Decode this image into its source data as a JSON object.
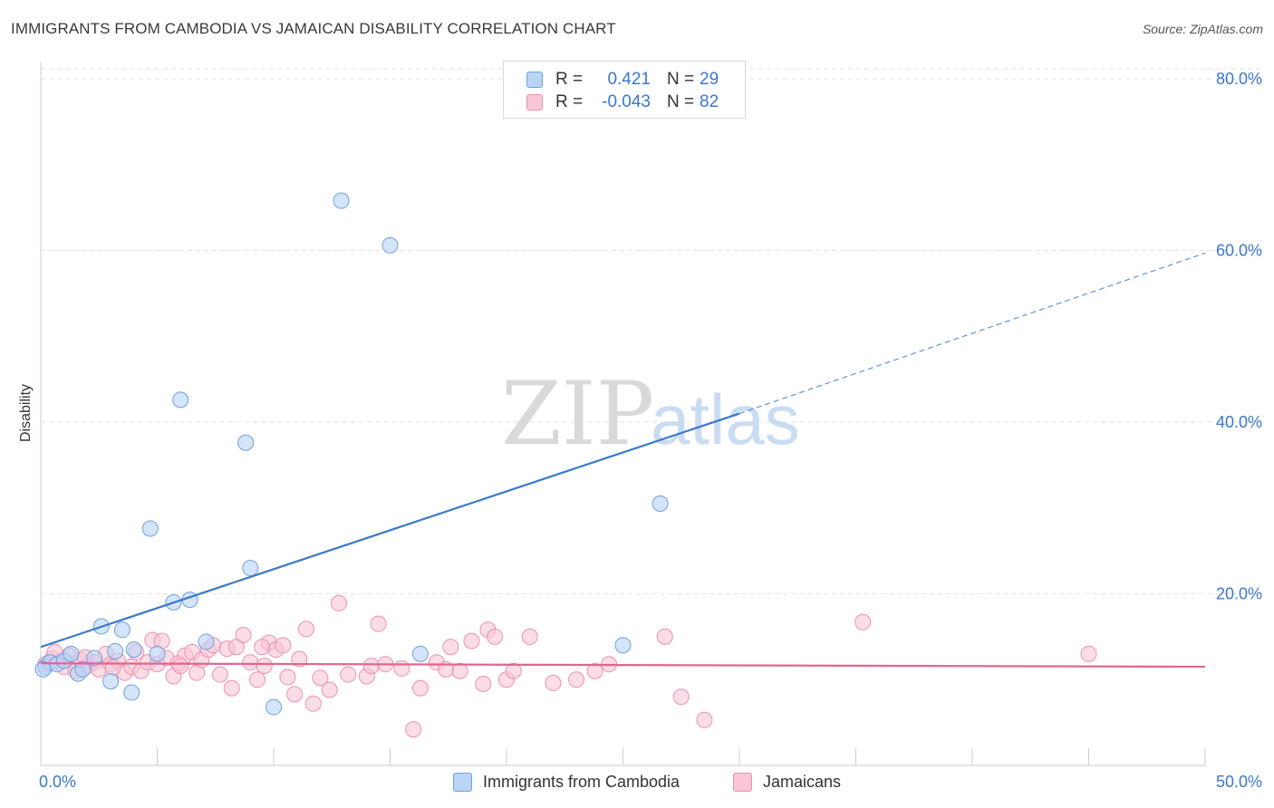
{
  "title": "IMMIGRANTS FROM CAMBODIA VS JAMAICAN DISABILITY CORRELATION CHART",
  "source": "Source: ZipAtlas.com",
  "watermark": {
    "zip": "ZIP",
    "atlas": "atlas"
  },
  "colors": {
    "blue": "#3b78cc",
    "blue_fill": "#b9d4f5",
    "blue_stroke": "#6fa0e0",
    "pink": "#e0668f",
    "pink_fill": "#f8c6d6",
    "pink_stroke": "#ec91b0",
    "grid": "#e3e3e3"
  },
  "stats": [
    {
      "r_label": "R =",
      "r_value": "0.421",
      "n_label": "N =",
      "n_value": "29"
    },
    {
      "r_label": "R =",
      "r_value": "-0.043",
      "n_label": "N =",
      "n_value": "82"
    }
  ],
  "legend": [
    {
      "label": "Immigrants from Cambodia"
    },
    {
      "label": "Jamaicans"
    }
  ],
  "chart_data": {
    "type": "scatter",
    "title": "IMMIGRANTS FROM CAMBODIA VS JAMAICAN DISABILITY CORRELATION CHART",
    "xlabel": "",
    "ylabel": "Disability",
    "xlim": [
      0,
      50
    ],
    "ylim": [
      0,
      80
    ],
    "x_tick_labels": [
      "0.0%",
      "50.0%"
    ],
    "y_ticks": [
      20,
      40,
      60,
      80
    ],
    "y_tick_labels": [
      "20.0%",
      "40.0%",
      "60.0%",
      "80.0%"
    ],
    "grid": true,
    "legend_position": "bottom",
    "series": [
      {
        "name": "Immigrants from Cambodia",
        "color": "#3b78cc",
        "points": [
          [
            0.2,
            11.5
          ],
          [
            0.4,
            12.0
          ],
          [
            0.7,
            11.8
          ],
          [
            1.0,
            12.2
          ],
          [
            1.3,
            13.0
          ],
          [
            1.6,
            10.7
          ],
          [
            1.8,
            11.2
          ],
          [
            2.3,
            12.5
          ],
          [
            2.6,
            16.2
          ],
          [
            3.0,
            9.8
          ],
          [
            3.2,
            13.3
          ],
          [
            3.5,
            15.8
          ],
          [
            3.9,
            8.5
          ],
          [
            4.0,
            13.5
          ],
          [
            4.7,
            27.6
          ],
          [
            5.0,
            13.0
          ],
          [
            5.7,
            19.0
          ],
          [
            6.0,
            42.6
          ],
          [
            6.4,
            19.3
          ],
          [
            7.1,
            14.4
          ],
          [
            8.8,
            37.6
          ],
          [
            9.0,
            23.0
          ],
          [
            10.0,
            6.8
          ],
          [
            12.9,
            65.8
          ],
          [
            15.0,
            60.6
          ],
          [
            16.3,
            13.0
          ],
          [
            25.0,
            14.0
          ],
          [
            26.6,
            30.5
          ],
          [
            0.1,
            11.2
          ]
        ],
        "trend": {
          "x": [
            0,
            30
          ],
          "y": [
            13.8,
            41.0
          ],
          "dashed_to": [
            50,
            59.7
          ]
        }
      },
      {
        "name": "Jamaicans",
        "color": "#e0668f",
        "points": [
          [
            0.2,
            11.8
          ],
          [
            0.5,
            12.5
          ],
          [
            0.8,
            12.0
          ],
          [
            1.0,
            11.5
          ],
          [
            1.2,
            12.8
          ],
          [
            1.5,
            11.0
          ],
          [
            1.7,
            12.3
          ],
          [
            2.0,
            11.6
          ],
          [
            2.3,
            12.0
          ],
          [
            2.5,
            11.2
          ],
          [
            2.8,
            13.0
          ],
          [
            3.0,
            11.8
          ],
          [
            3.3,
            12.2
          ],
          [
            3.6,
            10.8
          ],
          [
            3.9,
            11.5
          ],
          [
            4.1,
            13.2
          ],
          [
            4.3,
            11.0
          ],
          [
            4.6,
            12.0
          ],
          [
            4.8,
            14.6
          ],
          [
            5.0,
            11.8
          ],
          [
            5.2,
            14.5
          ],
          [
            5.4,
            12.5
          ],
          [
            5.7,
            10.4
          ],
          [
            5.9,
            11.9
          ],
          [
            6.2,
            12.8
          ],
          [
            6.5,
            13.2
          ],
          [
            6.7,
            10.8
          ],
          [
            6.9,
            12.3
          ],
          [
            7.2,
            13.5
          ],
          [
            7.4,
            14.0
          ],
          [
            7.7,
            10.6
          ],
          [
            8.0,
            13.6
          ],
          [
            8.2,
            9.0
          ],
          [
            8.4,
            13.8
          ],
          [
            8.7,
            15.2
          ],
          [
            9.0,
            12.0
          ],
          [
            9.3,
            10.0
          ],
          [
            9.6,
            11.6
          ],
          [
            9.8,
            14.3
          ],
          [
            10.1,
            13.5
          ],
          [
            10.4,
            14.0
          ],
          [
            10.6,
            10.3
          ],
          [
            10.9,
            8.3
          ],
          [
            11.1,
            12.4
          ],
          [
            11.4,
            15.9
          ],
          [
            11.7,
            7.2
          ],
          [
            12.0,
            10.2
          ],
          [
            12.4,
            8.8
          ],
          [
            12.8,
            18.9
          ],
          [
            14.0,
            10.4
          ],
          [
            14.2,
            11.6
          ],
          [
            14.5,
            16.5
          ],
          [
            14.8,
            11.8
          ],
          [
            15.5,
            11.3
          ],
          [
            16.0,
            4.2
          ],
          [
            16.3,
            9.0
          ],
          [
            17.0,
            12.0
          ],
          [
            17.4,
            11.2
          ],
          [
            17.6,
            13.8
          ],
          [
            18.0,
            11.0
          ],
          [
            18.5,
            14.5
          ],
          [
            19.0,
            9.5
          ],
          [
            19.2,
            15.8
          ],
          [
            19.5,
            15.0
          ],
          [
            20.0,
            10.0
          ],
          [
            20.3,
            11.0
          ],
          [
            21.0,
            15.0
          ],
          [
            23.0,
            10.0
          ],
          [
            23.8,
            11.0
          ],
          [
            24.4,
            11.8
          ],
          [
            26.8,
            15.0
          ],
          [
            27.5,
            8.0
          ],
          [
            28.5,
            5.3
          ],
          [
            35.3,
            16.7
          ],
          [
            45.0,
            13.0
          ],
          [
            0.6,
            13.2
          ],
          [
            1.9,
            12.6
          ],
          [
            3.1,
            11.4
          ],
          [
            6.0,
            11.6
          ],
          [
            9.5,
            13.8
          ],
          [
            13.2,
            10.6
          ],
          [
            22.0,
            9.6
          ]
        ],
        "trend": {
          "x": [
            0,
            50
          ],
          "y": [
            11.9,
            11.5
          ]
        }
      }
    ]
  }
}
